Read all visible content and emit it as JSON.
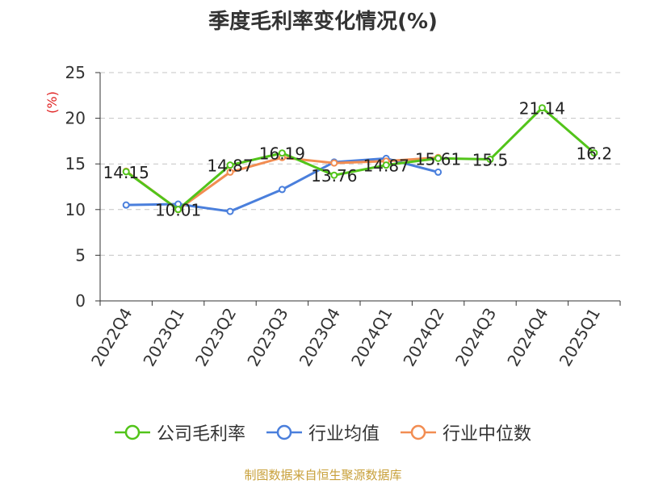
{
  "header": {
    "title": "季度毛利率变化情况(%)"
  },
  "footer": {
    "text": "制图数据来自恒生聚源数据库"
  },
  "chart_data": {
    "type": "line",
    "title": "季度毛利率变化情况(%)",
    "ylabel": "(%)",
    "xlabel": "",
    "ylim": [
      0,
      25
    ],
    "yticks": [
      0,
      5,
      10,
      15,
      20,
      25
    ],
    "grid": true,
    "legend_position": "bottom",
    "categories": [
      "2022Q4",
      "2023Q1",
      "2023Q2",
      "2023Q3",
      "2023Q4",
      "2024Q1",
      "2024Q2",
      "2024Q3",
      "2024Q4",
      "2025Q1"
    ],
    "series": [
      {
        "name": "公司毛利率",
        "color": "#52c41a",
        "values": [
          14.15,
          10.01,
          14.87,
          16.19,
          13.76,
          14.87,
          15.61,
          15.5,
          21.14,
          16.2
        ],
        "labels": [
          "14.15",
          "10.01",
          "14.87",
          "16.19",
          "13.76",
          "14.87",
          "15.61",
          "15.5",
          "21.14",
          "16.2"
        ]
      },
      {
        "name": "行业均值",
        "color": "#4a7fdc",
        "values": [
          10.5,
          10.6,
          9.8,
          12.2,
          15.2,
          15.6,
          14.1,
          null,
          null,
          null
        ]
      },
      {
        "name": "行业中位数",
        "color": "#f28d52",
        "values": [
          14.2,
          10.0,
          14.1,
          15.7,
          15.1,
          15.3,
          15.7,
          null,
          null,
          null
        ]
      }
    ]
  }
}
